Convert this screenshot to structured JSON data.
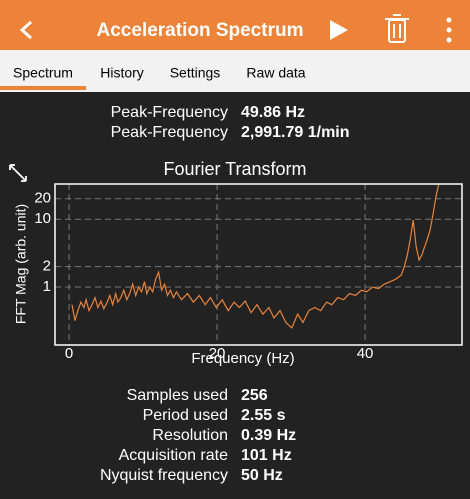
{
  "header": {
    "title": "Acceleration Spectrum"
  },
  "tabs": [
    "Spectrum",
    "History",
    "Settings",
    "Raw data"
  ],
  "results": [
    {
      "label": "Peak-Frequency",
      "value": "49.86 Hz"
    },
    {
      "label": "Peak-Frequency",
      "value": "2,991.79 1/min"
    }
  ],
  "chart_data": {
    "type": "line",
    "title": "Fourier Transform",
    "x_label": "Frequency (Hz)",
    "y_label": "FFT Mag (arb. unit)",
    "x": [
      0.4,
      0.8,
      1.2,
      1.6,
      2.0,
      2.3,
      2.7,
      3.1,
      3.5,
      3.9,
      4.3,
      4.7,
      5.1,
      5.5,
      5.9,
      6.3,
      6.6,
      7.0,
      7.4,
      7.8,
      8.2,
      8.6,
      9.0,
      9.4,
      9.8,
      10.2,
      10.5,
      10.9,
      11.3,
      11.7,
      12.1,
      12.5,
      12.9,
      13.3,
      13.7,
      14.1,
      14.5,
      15.2,
      16.0,
      16.8,
      17.6,
      18.4,
      19.1,
      19.9,
      20.7,
      21.5,
      22.3,
      23.0,
      23.8,
      24.6,
      25.4,
      26.2,
      27.0,
      27.7,
      28.5,
      29.3,
      30.1,
      30.9,
      31.6,
      32.4,
      33.2,
      34.0,
      34.8,
      35.5,
      36.3,
      37.1,
      37.9,
      38.7,
      39.5,
      40.2,
      41.0,
      41.8,
      42.6,
      43.4,
      44.1,
      44.9,
      45.3,
      45.7,
      46.1,
      46.5,
      46.9,
      47.3,
      47.7,
      48.0,
      48.4,
      48.8,
      49.2,
      49.6,
      50.0
    ],
    "values": [
      0.55,
      0.32,
      0.45,
      0.6,
      0.5,
      0.65,
      0.45,
      0.55,
      0.7,
      0.5,
      0.62,
      0.48,
      0.58,
      0.75,
      0.55,
      0.8,
      0.6,
      0.7,
      0.9,
      0.65,
      0.8,
      1.1,
      0.75,
      1.0,
      0.85,
      1.2,
      0.8,
      1.0,
      0.85,
      1.3,
      1.65,
      0.9,
      1.1,
      0.75,
      0.9,
      0.7,
      0.85,
      0.65,
      0.8,
      0.6,
      0.75,
      0.55,
      0.7,
      0.5,
      0.65,
      0.45,
      0.6,
      0.5,
      0.62,
      0.42,
      0.55,
      0.4,
      0.5,
      0.35,
      0.45,
      0.3,
      0.25,
      0.4,
      0.3,
      0.45,
      0.5,
      0.45,
      0.6,
      0.55,
      0.7,
      0.65,
      0.8,
      0.75,
      0.9,
      0.85,
      1.0,
      0.95,
      1.1,
      1.2,
      1.3,
      1.5,
      2.0,
      2.9,
      5,
      9.7,
      4,
      2.5,
      3.0,
      3.8,
      5,
      7,
      12,
      22,
      35
    ],
    "color": "#e8843c",
    "xlim": [
      -1.9,
      53.1
    ],
    "xticks": [
      0,
      20,
      40
    ],
    "ylim": [
      0.14,
      33
    ],
    "yticks": [
      1,
      2,
      10,
      20
    ],
    "log_y": true,
    "grid": true
  },
  "stats": [
    {
      "label": "Samples used",
      "value": "256"
    },
    {
      "label": "Period used",
      "value": "2.55 s"
    },
    {
      "label": "Resolution",
      "value": "0.39 Hz"
    },
    {
      "label": "Acquisition rate",
      "value": "101 Hz"
    },
    {
      "label": "Nyquist frequency",
      "value": "50 Hz"
    }
  ]
}
